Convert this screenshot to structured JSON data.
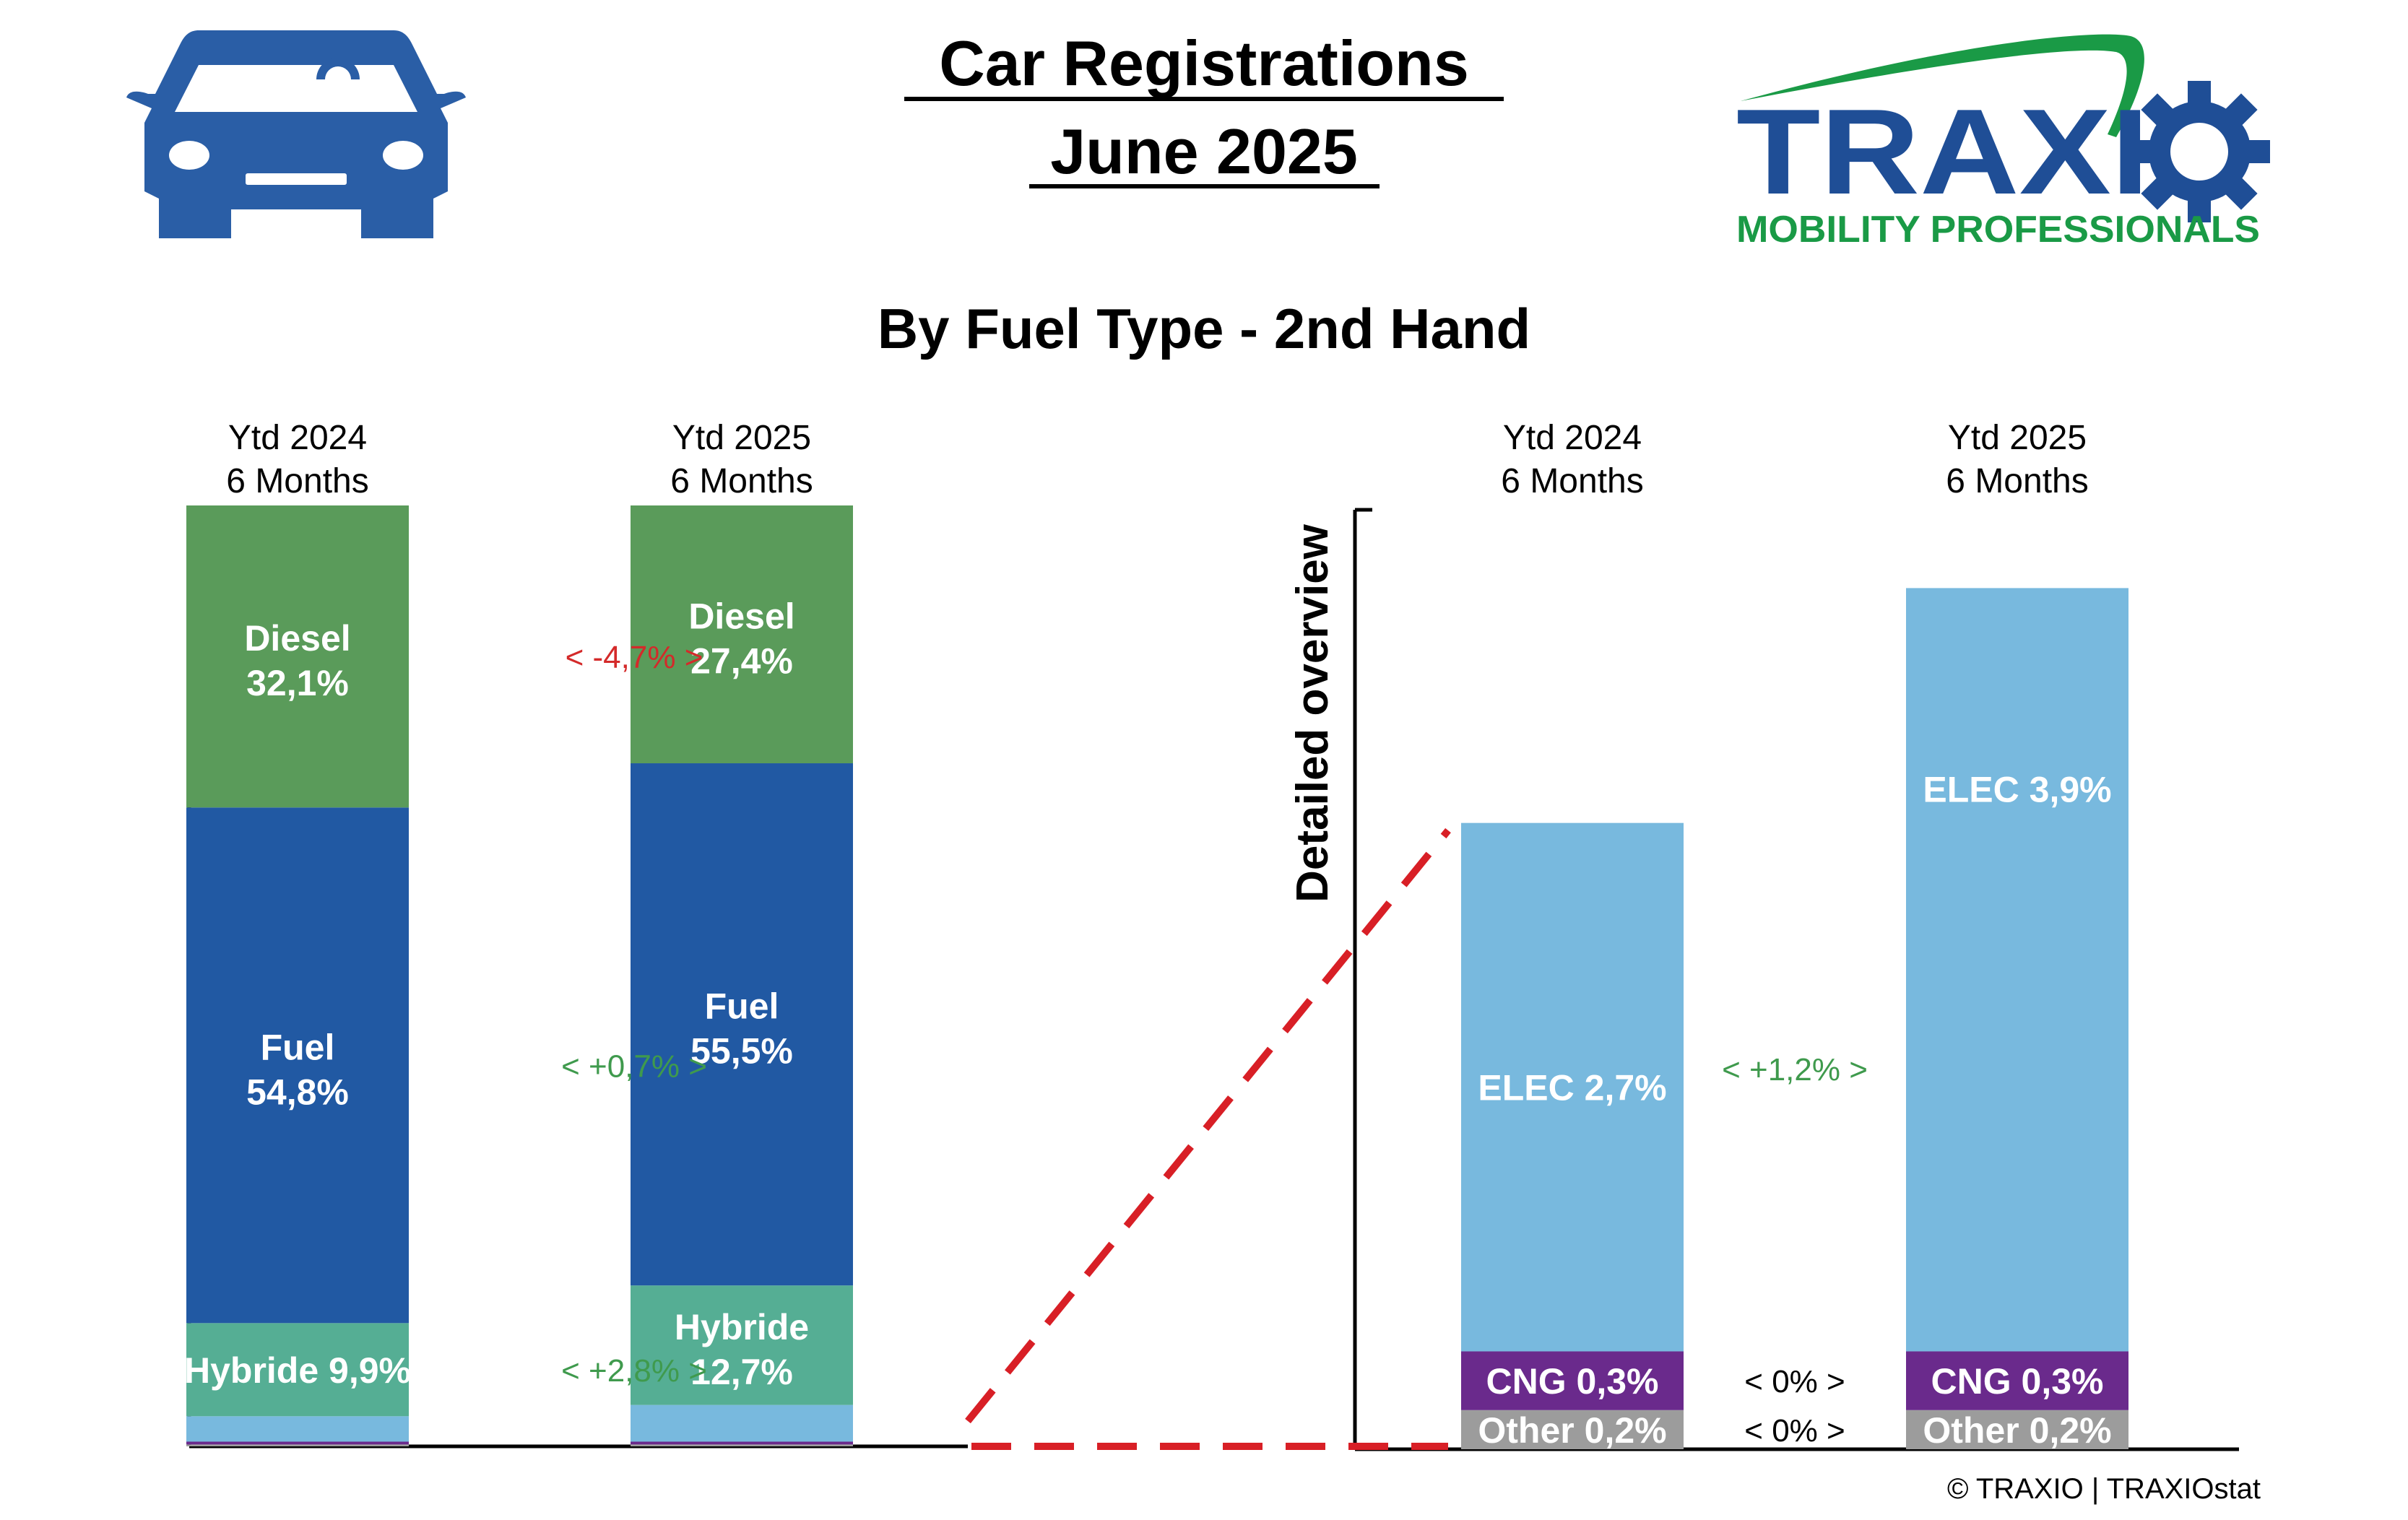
{
  "header": {
    "title_line1": "Car Registrations",
    "title_line2": "June 2025",
    "subtitle": "By Fuel Type - 2nd Hand"
  },
  "logo": {
    "brand": "TRAXIO",
    "tagline": "MOBILITY PROFESSIONALS",
    "brand_color": "#1f4e96",
    "accent_color": "#1a9a46"
  },
  "icons": {
    "left": "car-icon"
  },
  "colors": {
    "diesel": "#5a9b5a",
    "fuel": "#2159a3",
    "hybride": "#55ae94",
    "elec": "#78b9de",
    "cng": "#6a2a8c",
    "other": "#9c9c9c",
    "positive": "#3f9a4d",
    "negative": "#d42a2a",
    "neutral": "#000000",
    "connector": "#d81f26"
  },
  "detail_axis_label": "Detailed overview",
  "copyright": "© TRAXIO | TRAXIOstat",
  "chart_data": [
    {
      "type": "bar",
      "stacked": true,
      "categories": [
        {
          "line1": "Ytd 2024",
          "line2": "6 Months"
        },
        {
          "line1": "Ytd 2025",
          "line2": "6 Months"
        }
      ],
      "series": [
        {
          "key": "diesel",
          "label": "Diesel",
          "values": [
            32.1,
            27.4
          ],
          "display": [
            "32,1%",
            "27,4%"
          ]
        },
        {
          "key": "fuel",
          "label": "Fuel",
          "values": [
            54.8,
            55.5
          ],
          "display": [
            "54,8%",
            "55,5%"
          ]
        },
        {
          "key": "hybride",
          "label": "Hybride",
          "values": [
            9.9,
            12.7
          ],
          "display": [
            "9,9%",
            "12,7%"
          ]
        },
        {
          "key": "elec",
          "label": "ELEC",
          "values": [
            2.7,
            3.9
          ],
          "display": [
            "2,7%",
            "3,9%"
          ]
        },
        {
          "key": "cng",
          "label": "CNG",
          "values": [
            0.3,
            0.3
          ],
          "display": [
            "0,3%",
            "0,3%"
          ]
        },
        {
          "key": "other",
          "label": "Other",
          "values": [
            0.2,
            0.2
          ],
          "display": [
            "0,2%",
            "0,2%"
          ]
        }
      ],
      "changes": [
        {
          "series": "diesel",
          "text": "<  -4,7%  >",
          "sign": "negative"
        },
        {
          "series": "fuel",
          "text": "<  +0,7%  >",
          "sign": "positive"
        },
        {
          "series": "hybride",
          "text": "<  +2,8%  >",
          "sign": "positive"
        }
      ],
      "ylim": [
        0,
        100
      ]
    },
    {
      "type": "bar",
      "stacked": true,
      "categories": [
        {
          "line1": "Ytd 2024",
          "line2": "6 Months"
        },
        {
          "line1": "Ytd 2025",
          "line2": "6 Months"
        }
      ],
      "series": [
        {
          "key": "other",
          "label": "Other",
          "values": [
            0.2,
            0.2
          ],
          "display": [
            "0,2%",
            "0,2%"
          ]
        },
        {
          "key": "cng",
          "label": "CNG",
          "values": [
            0.3,
            0.3
          ],
          "display": [
            "0,3%",
            "0,3%"
          ]
        },
        {
          "key": "elec",
          "label": "ELEC",
          "values": [
            2.7,
            3.9
          ],
          "display": [
            "2,7%",
            "3,9%"
          ]
        }
      ],
      "changes": [
        {
          "series": "elec",
          "text": "<  +1,2%  >",
          "sign": "positive"
        },
        {
          "series": "cng",
          "text": "<  0%  >",
          "sign": "neutral"
        },
        {
          "series": "other",
          "text": "<  0%  >",
          "sign": "neutral"
        }
      ],
      "ylim": [
        0,
        4.8
      ]
    }
  ]
}
